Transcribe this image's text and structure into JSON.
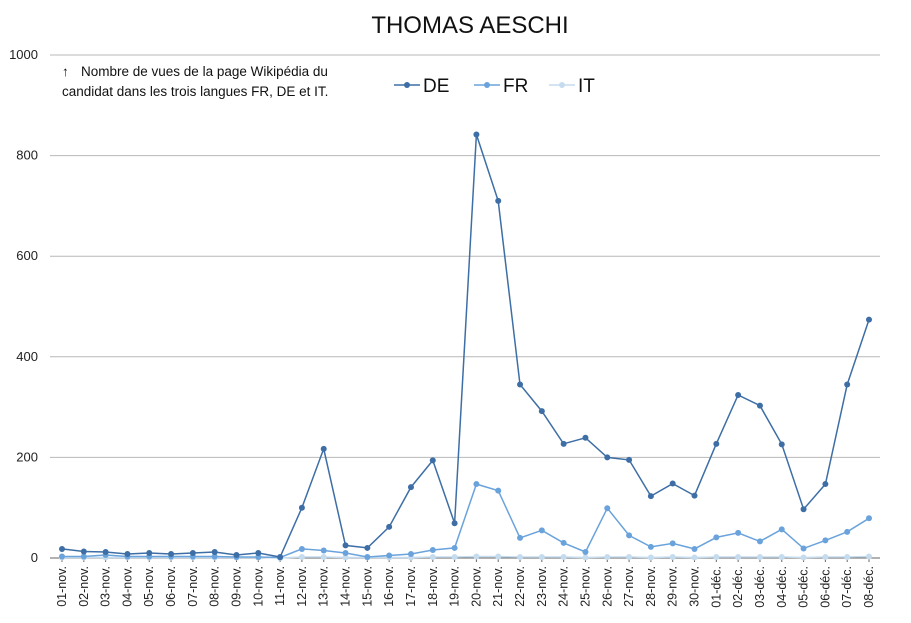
{
  "chart_data": {
    "type": "line",
    "title": "THOMAS AESCHI",
    "annotation": {
      "arrow": "↑",
      "line1": "Nombre de vues de la page Wikipédia du",
      "line2": "candidat dans les trois langues FR, DE et IT."
    },
    "ylim": [
      0,
      1000
    ],
    "yticks": [
      0,
      200,
      400,
      600,
      800,
      1000
    ],
    "grid": true,
    "legend_position": "top-right",
    "categories": [
      "01-nov.",
      "02-nov.",
      "03-nov.",
      "04-nov.",
      "05-nov.",
      "06-nov.",
      "07-nov.",
      "08-nov.",
      "09-nov.",
      "10-nov.",
      "11-nov.",
      "12-nov.",
      "13-nov.",
      "14-nov.",
      "15-nov.",
      "16-nov.",
      "17-nov.",
      "18-nov.",
      "19-nov.",
      "20-nov.",
      "21-nov.",
      "22-nov.",
      "23-nov.",
      "24-nov.",
      "25-nov.",
      "26-nov.",
      "27-nov.",
      "28-nov.",
      "29-nov.",
      "30-nov.",
      "01-déc.",
      "02-déc.",
      "03-déc.",
      "04-déc.",
      "05-déc.",
      "06-déc.",
      "07-déc.",
      "08-déc."
    ],
    "series": [
      {
        "name": "DE",
        "color": "#3d6ea5",
        "values": [
          18,
          13,
          12,
          8,
          10,
          8,
          10,
          12,
          6,
          10,
          2,
          100,
          217,
          25,
          20,
          62,
          141,
          194,
          69,
          842,
          710,
          345,
          292,
          227,
          239,
          200,
          195,
          123,
          148,
          124,
          227,
          324,
          303,
          226,
          97,
          147,
          345,
          474
        ]
      },
      {
        "name": "FR",
        "color": "#6aa3dc",
        "values": [
          3,
          3,
          6,
          3,
          3,
          3,
          3,
          3,
          2,
          2,
          1,
          18,
          15,
          10,
          2,
          5,
          8,
          16,
          20,
          147,
          134,
          40,
          55,
          30,
          12,
          99,
          45,
          22,
          29,
          18,
          41,
          50,
          33,
          57,
          19,
          35,
          52,
          79
        ]
      },
      {
        "name": "IT",
        "color": "#c5dcef",
        "values": [
          1,
          1,
          1,
          1,
          1,
          1,
          1,
          1,
          1,
          1,
          0,
          2,
          2,
          1,
          1,
          1,
          1,
          2,
          2,
          3,
          3,
          2,
          2,
          2,
          1,
          2,
          2,
          1,
          2,
          1,
          2,
          2,
          2,
          2,
          1,
          2,
          2,
          3
        ]
      }
    ]
  }
}
